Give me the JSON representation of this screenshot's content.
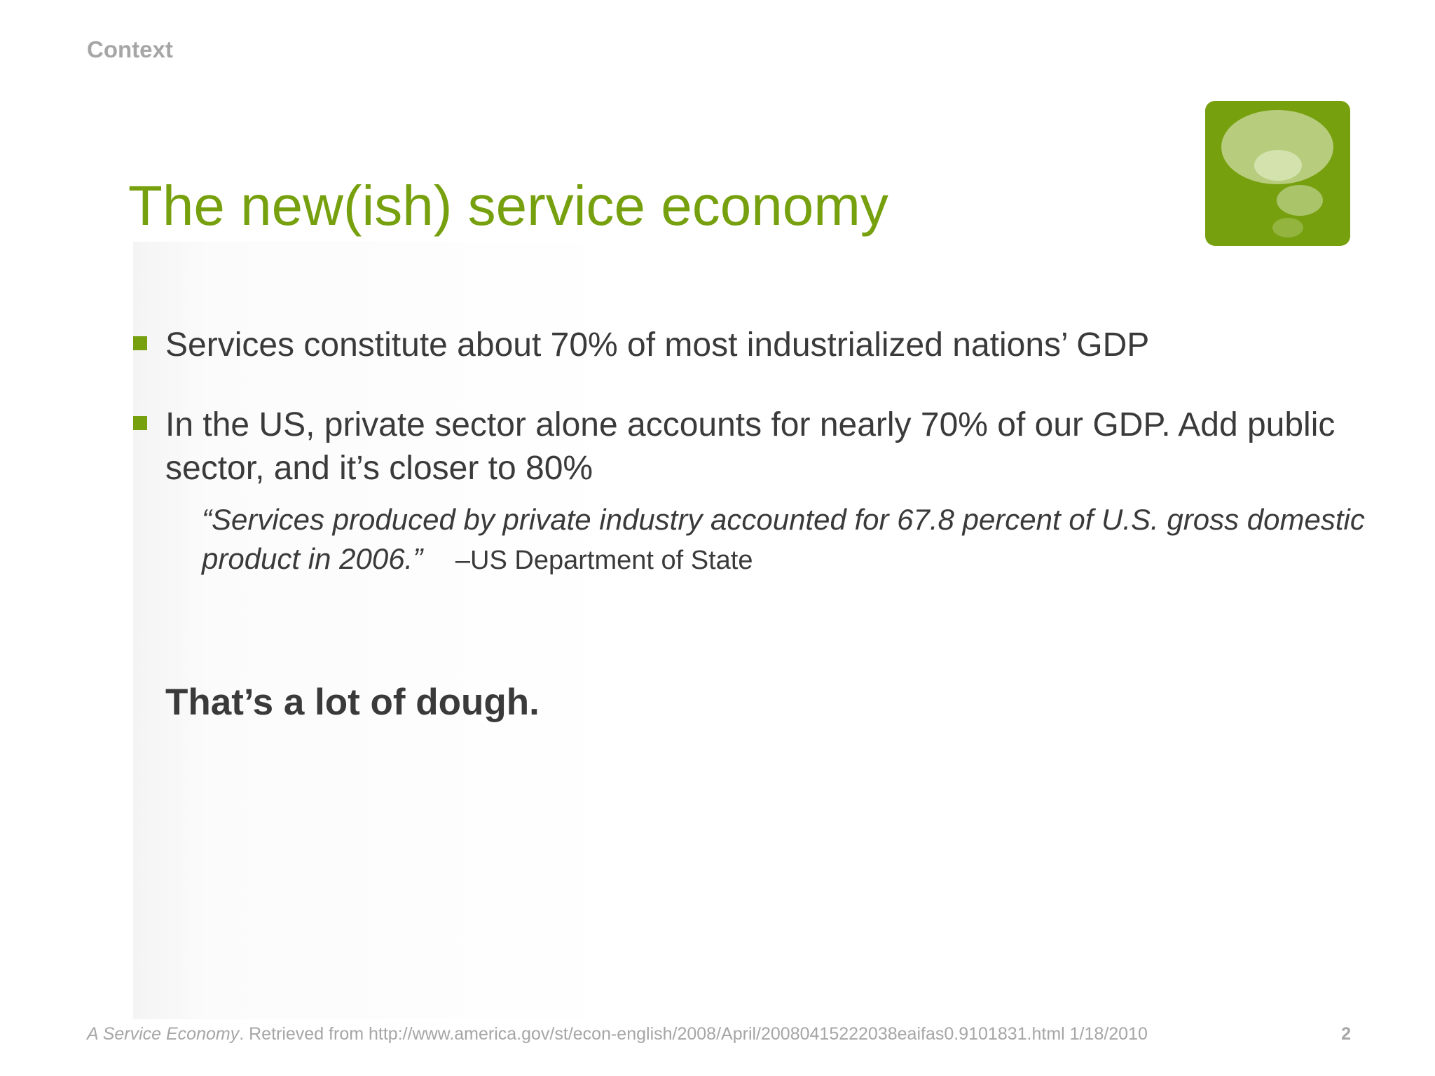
{
  "header": {
    "section_label": "Context"
  },
  "title": "The new(ish) service economy",
  "logo": {
    "icon": "thought-bubble-icon",
    "background_color": "#76a00e"
  },
  "bullets": [
    {
      "text": "Services constitute about 70% of most industrialized nations’ GDP"
    },
    {
      "text": "In the US, private sector alone accounts for nearly 70% of our GDP. Add public sector, and it’s closer to 80%"
    }
  ],
  "quote": {
    "text": "“Services produced by private industry accounted for 67.8 percent of U.S. gross domestic product in 2006.”",
    "attribution": "–US Department of State"
  },
  "emphasis": "That’s a lot of dough.",
  "footer": {
    "reference_title": "A Service Economy",
    "reference_rest": ". Retrieved from http://www.america.gov/st/econ-english/2008/April/20080415222038eaifas0.9101831.html 1/18/2010",
    "page_number": "2"
  },
  "colors": {
    "accent": "#76a00e",
    "text": "#3a3a3a",
    "muted": "#a6a6a6"
  }
}
